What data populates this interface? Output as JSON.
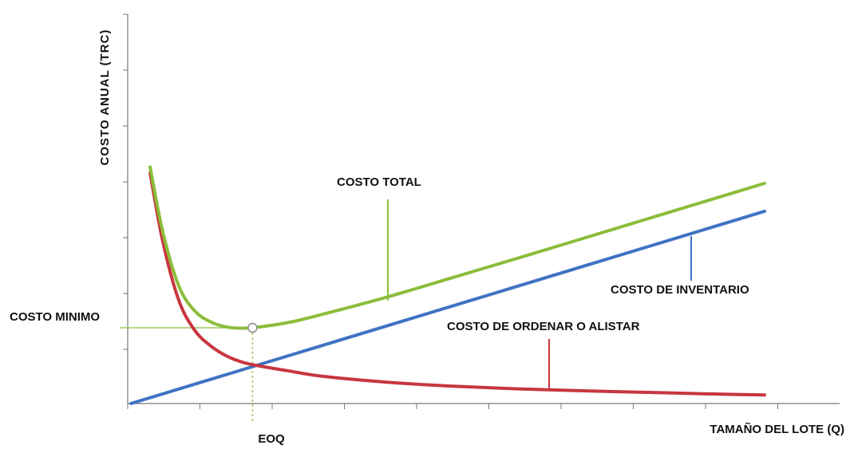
{
  "chart_data": {
    "type": "line",
    "title": "",
    "ylabel": "COSTO ANUAL (TRC)",
    "xlabel": "TAMAÑO DEL LOTE (Q)",
    "xlim": [
      0,
      10
    ],
    "ylim": [
      0,
      10
    ],
    "grid": false,
    "colors": {
      "total": "#8bbd3a",
      "inventory": "#3f73c3",
      "ordering": "#c8363f",
      "guide_line": "#9ccb5a",
      "axis": "#777777"
    },
    "series": [
      {
        "name": "COSTO TOTAL",
        "values": [
          [
            0.3,
            6.09
          ],
          [
            0.5,
            4.41
          ],
          [
            0.75,
            3.02
          ],
          [
            1.0,
            2.38
          ],
          [
            1.25,
            2.1
          ],
          [
            1.5,
            1.97
          ],
          [
            1.75,
            1.94
          ],
          [
            2.0,
            1.97
          ],
          [
            2.5,
            2.1
          ],
          [
            3.0,
            2.3
          ],
          [
            4.0,
            2.74
          ],
          [
            5.0,
            3.23
          ],
          [
            6.0,
            3.72
          ],
          [
            7.0,
            4.22
          ],
          [
            8.0,
            4.72
          ],
          [
            9.0,
            5.22
          ],
          [
            9.9,
            5.67
          ]
        ]
      },
      {
        "name": "COSTO DE INVENTARIO",
        "values": [
          [
            0.0,
            0.0
          ],
          [
            9.9,
            4.95
          ]
        ]
      },
      {
        "name": "COSTO DE ORDENAR O ALISTAR",
        "values": [
          [
            0.3,
            5.94
          ],
          [
            0.5,
            4.16
          ],
          [
            0.75,
            2.65
          ],
          [
            1.0,
            1.88
          ],
          [
            1.25,
            1.48
          ],
          [
            1.5,
            1.22
          ],
          [
            1.75,
            1.06
          ],
          [
            2.0,
            0.97
          ],
          [
            2.5,
            0.83
          ],
          [
            3.0,
            0.7
          ],
          [
            4.0,
            0.55
          ],
          [
            5.0,
            0.45
          ],
          [
            6.0,
            0.38
          ],
          [
            7.0,
            0.33
          ],
          [
            8.0,
            0.29
          ],
          [
            9.0,
            0.25
          ],
          [
            9.9,
            0.22
          ]
        ]
      }
    ],
    "annotations": {
      "costo_minimo": "COSTO MINIMO",
      "eoq": "EOQ",
      "min_point": {
        "x": 1.9,
        "y": 1.95
      }
    }
  }
}
